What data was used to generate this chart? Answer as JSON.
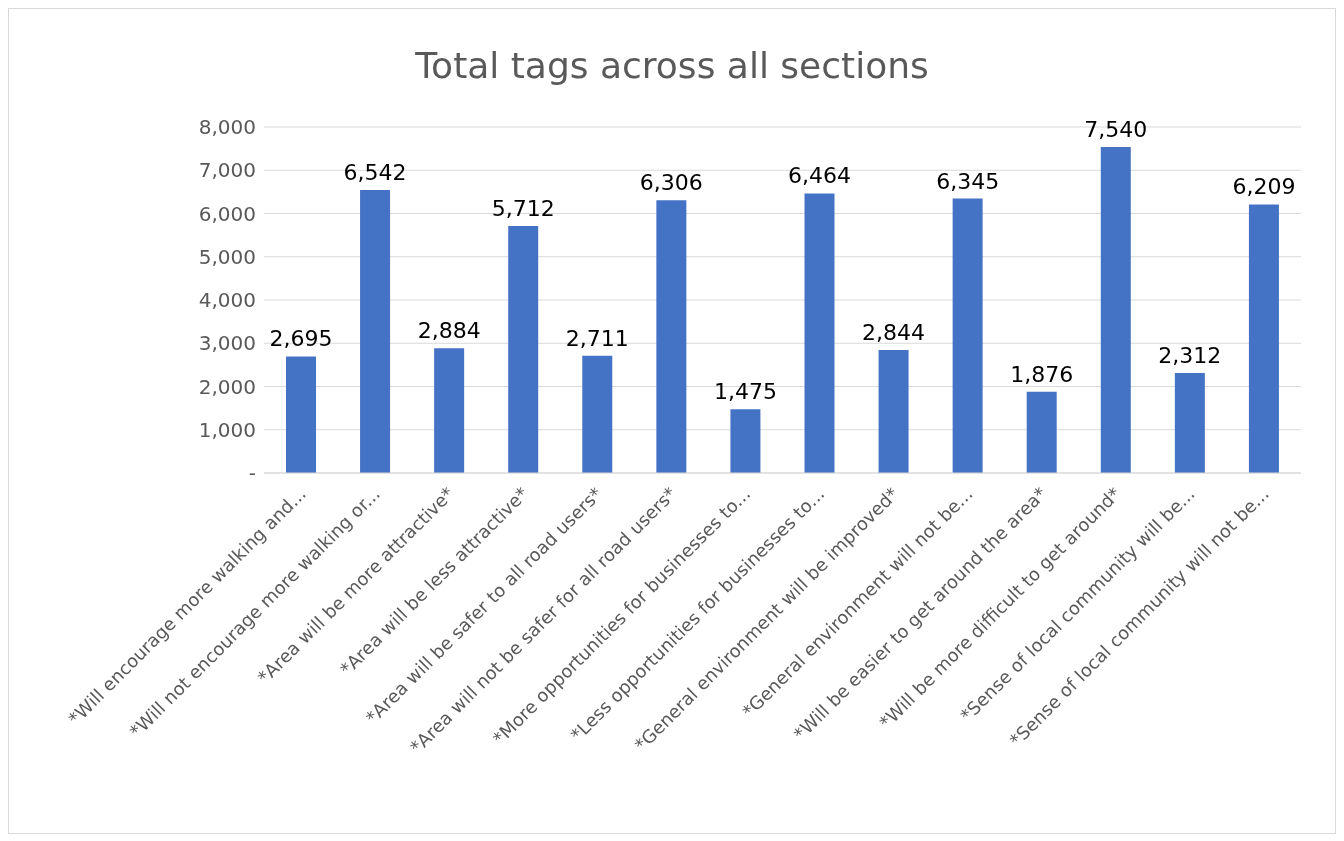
{
  "chart_data": {
    "type": "bar",
    "title": "Total tags across all sections",
    "categories": [
      "*Will encourage more walking and...",
      "*Will not encourage more walking or...",
      "*Area will be more attractive*",
      "*Area will be less attractive*",
      "*Area will be safer to all road users*",
      "*Area will not be safer for all road users*",
      "*More opportunities for businesses to...",
      "*Less opportunities for businesses to...",
      "*General environment will be improved*",
      "*General environment will not be...",
      "*Will be easier to get around the area*",
      "*Will be more difficult to get around*",
      "*Sense of local community will be...",
      "*Sense of local community will not be..."
    ],
    "values": [
      2695,
      6542,
      2884,
      5712,
      2711,
      6306,
      1475,
      6464,
      2844,
      6345,
      1876,
      7540,
      2312,
      6209
    ],
    "color": "#4472c4",
    "ylim": [
      0,
      8000
    ],
    "yticks": [
      {
        "value": 0,
        "label": "-"
      },
      {
        "value": 1000,
        "label": "1,000"
      },
      {
        "value": 2000,
        "label": "2,000"
      },
      {
        "value": 3000,
        "label": "3,000"
      },
      {
        "value": 4000,
        "label": "4,000"
      },
      {
        "value": 5000,
        "label": "5,000"
      },
      {
        "value": 6000,
        "label": "6,000"
      },
      {
        "value": 7000,
        "label": "7,000"
      },
      {
        "value": 8000,
        "label": "8,000"
      }
    ],
    "value_labels": [
      "2,695",
      "6,542",
      "2,884",
      "5,712",
      "2,711",
      "6,306",
      "1,475",
      "6,464",
      "2,844",
      "6,345",
      "1,876",
      "7,540",
      "2,312",
      "6,209"
    ],
    "grid": "y",
    "legend": false
  }
}
